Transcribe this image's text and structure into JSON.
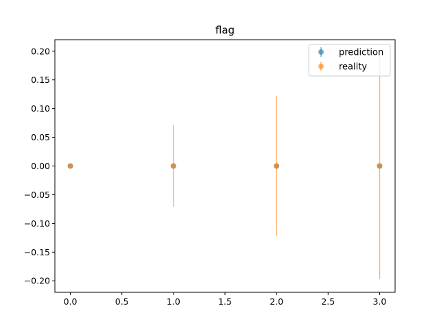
{
  "chart_data": {
    "type": "scatter",
    "title": "flag",
    "xlabel": "",
    "ylabel": "",
    "xlim": [
      -0.15,
      3.15
    ],
    "ylim": [
      -0.22,
      0.22
    ],
    "x_ticks": [
      0.0,
      0.5,
      1.0,
      1.5,
      2.0,
      2.5,
      3.0
    ],
    "x_tick_labels": [
      "0.0",
      "0.5",
      "1.0",
      "1.5",
      "2.0",
      "2.5",
      "3.0"
    ],
    "y_ticks": [
      0.2,
      0.15,
      0.1,
      0.05,
      0.0,
      -0.05,
      -0.1,
      -0.15,
      -0.2
    ],
    "y_tick_labels": [
      "0.20",
      "0.15",
      "0.10",
      "0.05",
      "0.00",
      "−0.05",
      "−0.10",
      "−0.15",
      "−0.20"
    ],
    "grid": false,
    "legend_position": "top-right",
    "series": [
      {
        "name": "prediction",
        "color": "#1f77b4",
        "x": [
          0,
          1,
          2,
          3
        ],
        "y": [
          0.0,
          0.0,
          0.0,
          0.0
        ],
        "yerr": [
          0.0,
          0.0,
          0.0,
          0.0
        ]
      },
      {
        "name": "reality",
        "color": "#ff7f0e",
        "x": [
          0,
          1,
          2,
          3
        ],
        "y": [
          0.0,
          0.0,
          0.0,
          0.0
        ],
        "yerr": [
          0.0,
          0.071,
          0.122,
          0.197
        ]
      }
    ]
  }
}
